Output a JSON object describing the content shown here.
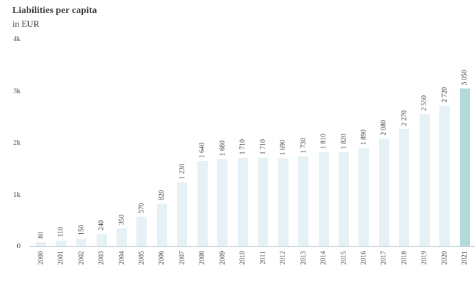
{
  "header": {
    "title": "Liabilities per capita",
    "subtitle": "in EUR"
  },
  "colors": {
    "bar_default": "#e5f1f5",
    "bar_highlight": "#b3d9db",
    "axis_line": "#c9d7e2",
    "title_text": "#3c3c3c",
    "tick_text": "#555555",
    "value_text": "#3f3f3f"
  },
  "chart_data": {
    "type": "bar",
    "title": "Liabilities per capita",
    "subtitle": "in EUR",
    "xlabel": "",
    "ylabel": "EUR",
    "ylim": [
      0,
      4000
    ],
    "grid": false,
    "legend": "none",
    "y_ticks": [
      {
        "label": "4k",
        "value": 4000
      },
      {
        "label": "3k",
        "value": 3000
      },
      {
        "label": "2k",
        "value": 2000
      },
      {
        "label": "1k",
        "value": 1000
      },
      {
        "label": "0",
        "value": 0
      }
    ],
    "categories": [
      "2000",
      "2001",
      "2002",
      "2003",
      "2004",
      "2005",
      "2006",
      "2007",
      "2008",
      "2009",
      "2010",
      "2011",
      "2012",
      "2013",
      "2014",
      "2015",
      "2016",
      "2017",
      "2018",
      "2019",
      "2020",
      "2021"
    ],
    "values": [
      80,
      110,
      150,
      240,
      350,
      570,
      820,
      1230,
      1640,
      1680,
      1710,
      1710,
      1690,
      1730,
      1810,
      1820,
      1890,
      2080,
      2270,
      2550,
      2720,
      3050
    ],
    "value_labels": [
      "80",
      "110",
      "150",
      "240",
      "350",
      "570",
      "820",
      "1 230",
      "1 640",
      "1 680",
      "1 710",
      "1 710",
      "1 690",
      "1 730",
      "1 810",
      "1 820",
      "1 890",
      "2 080",
      "2 270",
      "2 550",
      "2 720",
      "3 050"
    ],
    "highlight_index": 21
  }
}
